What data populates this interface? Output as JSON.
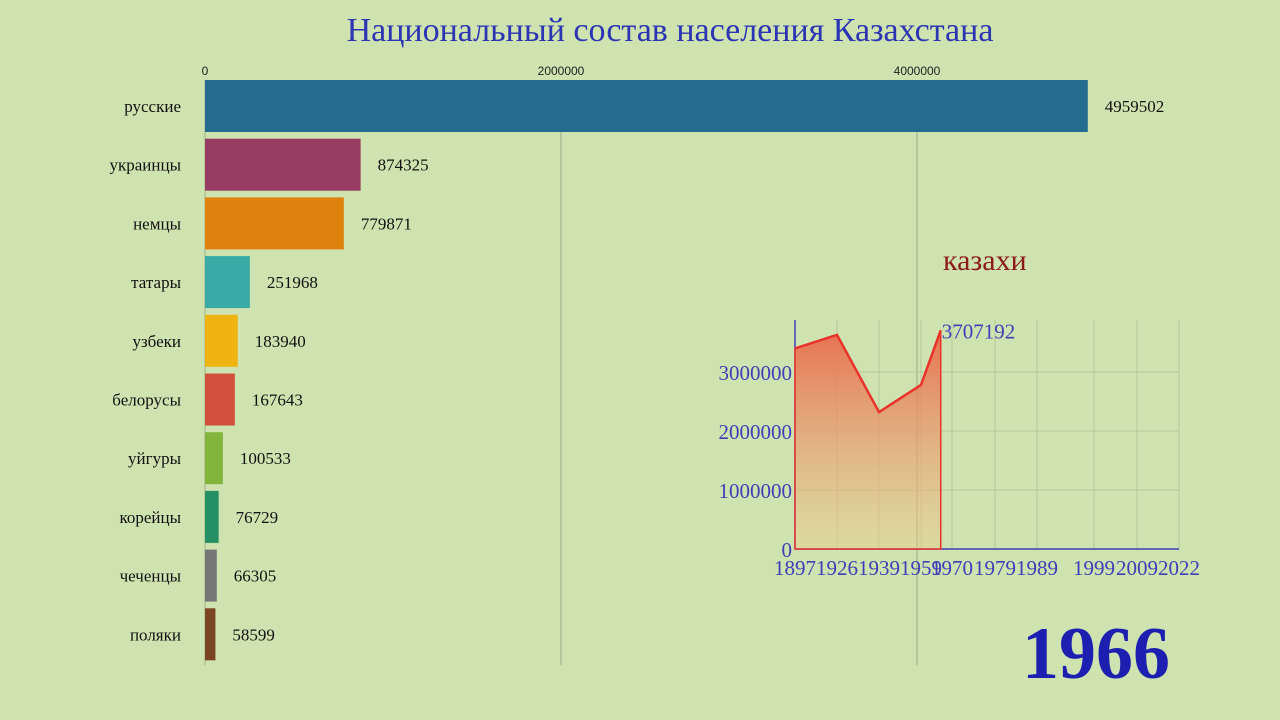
{
  "title": "Национальный состав населения Казахстана",
  "year": "1966",
  "colors": {
    "title": "#2b34b3",
    "year": "#1d1fb0",
    "inset_title": "#8b1a1a",
    "inset_axis": "#3e3eb8",
    "inset_line": "#e8322b"
  },
  "chart_data": [
    {
      "type": "bar",
      "orientation": "horizontal",
      "categories": [
        "русские",
        "украинцы",
        "немцы",
        "татары",
        "узбеки",
        "белорусы",
        "уйгуры",
        "корейцы",
        "чеченцы",
        "поляки"
      ],
      "values": [
        4959502,
        874325,
        779871,
        251968,
        183940,
        167643,
        100533,
        76729,
        66305,
        58599
      ],
      "value_labels": [
        "4959502",
        "874325",
        "779871",
        "251968",
        "183940",
        "167643",
        "100533",
        "76729",
        "66305",
        "58599"
      ],
      "bar_colors": [
        "#236c8f",
        "#973c63",
        "#e0830e",
        "#3aaaa6",
        "#efb312",
        "#d1503b",
        "#83b53c",
        "#259064",
        "#767676",
        "#7a4523"
      ],
      "x_ticks": [
        0,
        2000000,
        4000000
      ],
      "x_tick_labels": [
        "0",
        "2000000",
        "4000000"
      ],
      "xlim": [
        0,
        5000000
      ],
      "grid": true,
      "x_axis_position": "top"
    },
    {
      "type": "area",
      "title": "казахи",
      "x": [
        "1897",
        "1926",
        "1939",
        "1959",
        "1970",
        "1979",
        "1989",
        "1999",
        "2009",
        "2022"
      ],
      "x_positions": [
        1897,
        1926,
        1939,
        1959,
        1970,
        1979,
        1989,
        1999,
        2009,
        2022
      ],
      "series": [
        {
          "x": [
            1897,
            1926,
            1939,
            1959,
            1966
          ],
          "values": [
            3400000,
            3630000,
            2320000,
            2780000,
            3707192
          ]
        }
      ],
      "end_label": "3707192",
      "y_ticks": [
        0,
        1000000,
        2000000,
        3000000
      ],
      "y_tick_labels": [
        "0",
        "1000000",
        "2000000",
        "3000000"
      ],
      "ylim": [
        0,
        3900000
      ],
      "grid": true
    }
  ]
}
